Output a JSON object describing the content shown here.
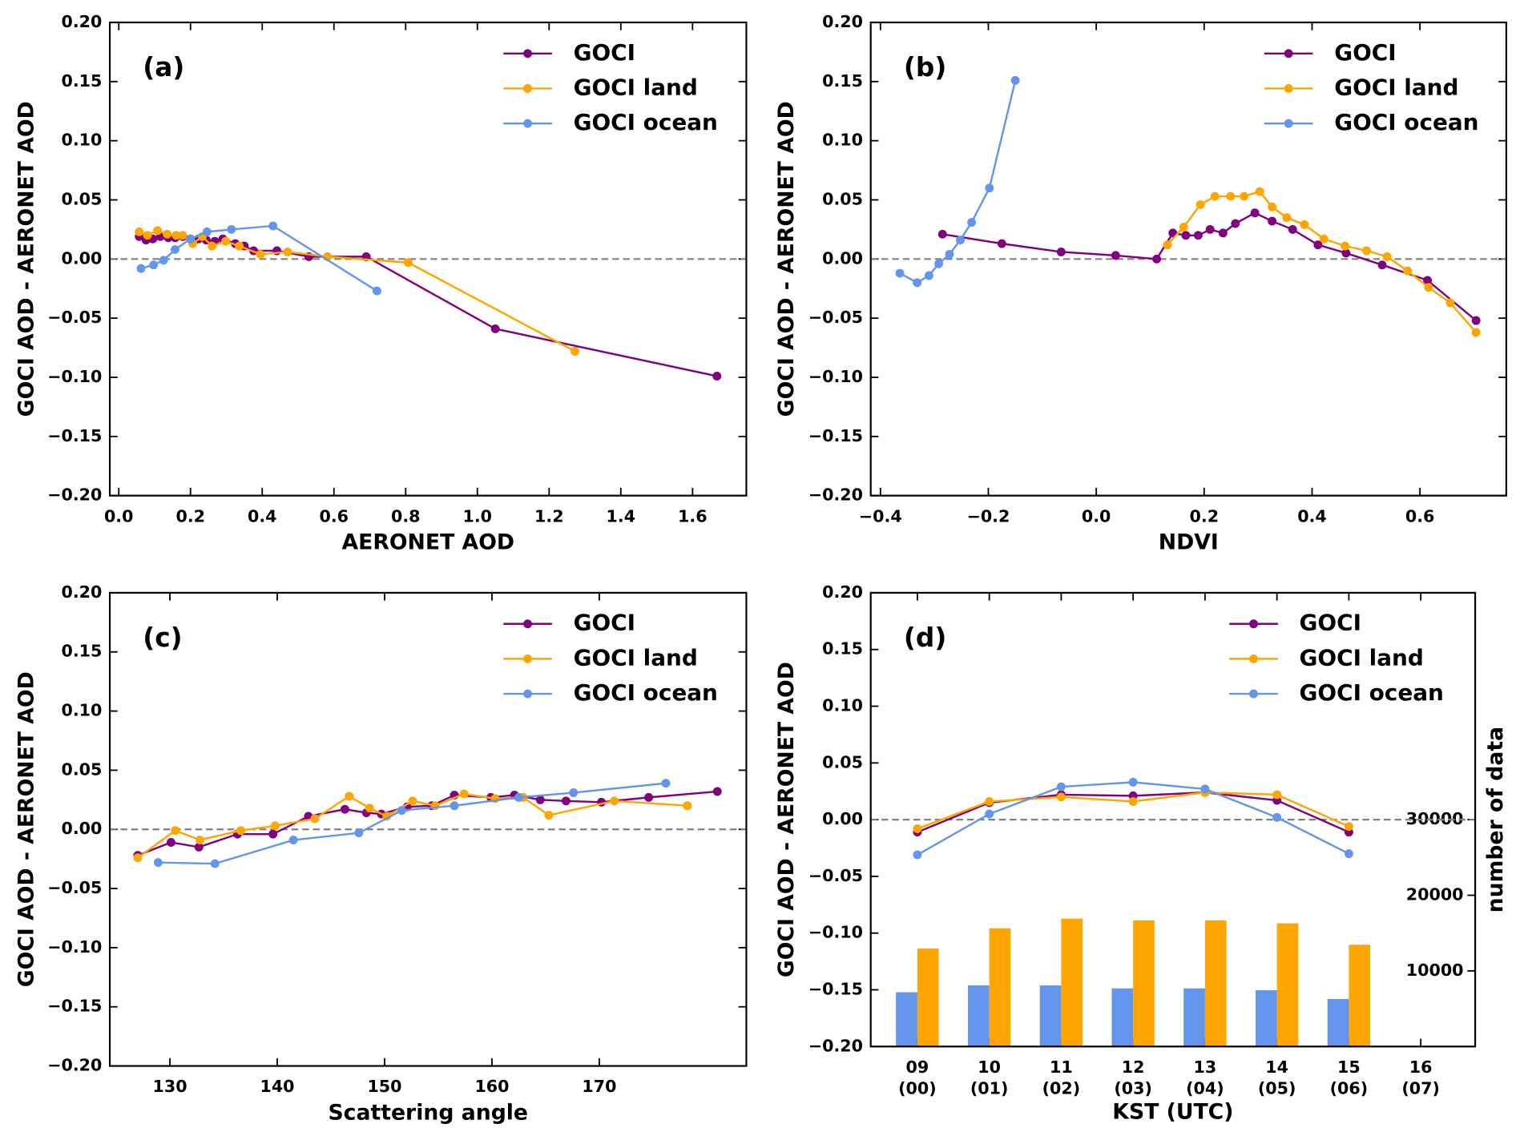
{
  "chart_data": [
    {
      "type": "line",
      "panel_label": "(a)",
      "x_label": "AERONET AOD",
      "y_label": "GOCI AOD - AERONET AOD",
      "xlim": [
        -0.025,
        1.75
      ],
      "ylim": [
        -0.2,
        0.2
      ],
      "xticks": [
        {
          "value": 0,
          "label": "0.0"
        },
        0.2,
        0.4,
        0.6,
        0.8,
        {
          "value": 1,
          "label": "1.0"
        },
        1.2,
        1.4,
        1.6
      ],
      "yticks": [
        {
          "value": -0.2,
          "label": "−0.20"
        },
        {
          "value": -0.15,
          "label": "−0.15"
        },
        {
          "value": -0.1,
          "label": "−0.10"
        },
        {
          "value": -0.05,
          "label": "−0.05"
        },
        {
          "value": 0,
          "label": "0.00"
        },
        {
          "value": 0.05,
          "label": "0.05"
        },
        {
          "value": 0.1,
          "label": "0.10"
        },
        {
          "value": 0.15,
          "label": "0.15"
        },
        {
          "value": 0.2,
          "label": "0.20"
        }
      ],
      "reference_line": 0,
      "legend": "upper right",
      "series": [
        {
          "name": "GOCI",
          "color": "#800080",
          "x": [
            0.057,
            0.076,
            0.095,
            0.116,
            0.138,
            0.157,
            0.179,
            0.2,
            0.222,
            0.244,
            0.268,
            0.29,
            0.325,
            0.35,
            0.376,
            0.441,
            0.53,
            0.69,
            1.05,
            1.668
          ],
          "values": [
            0.019,
            0.016,
            0.017,
            0.019,
            0.018,
            0.018,
            0.019,
            0.017,
            0.017,
            0.016,
            0.015,
            0.017,
            0.013,
            0.011,
            0.007,
            0.007,
            0.002,
            0.002,
            -0.059,
            -0.099
          ]
        },
        {
          "name": "GOCI land",
          "color": "#ffa500",
          "x": [
            0.057,
            0.08,
            0.108,
            0.135,
            0.16,
            0.178,
            0.206,
            0.233,
            0.26,
            0.298,
            0.336,
            0.395,
            0.471,
            0.582,
            0.807,
            1.272
          ],
          "values": [
            0.023,
            0.02,
            0.024,
            0.021,
            0.02,
            0.02,
            0.013,
            0.019,
            0.011,
            0.015,
            0.011,
            0.004,
            0.006,
            0.002,
            -0.003,
            -0.078
          ]
        },
        {
          "name": "GOCI ocean",
          "color": "#6495ed",
          "x": [
            0.062,
            0.097,
            0.125,
            0.157,
            0.2,
            0.246,
            0.314,
            0.43,
            0.72
          ],
          "values": [
            -0.008,
            -0.005,
            -0.001,
            0.008,
            0.017,
            0.023,
            0.025,
            0.028,
            -0.027
          ]
        }
      ]
    },
    {
      "type": "line",
      "panel_label": "(b)",
      "x_label": "NDVI",
      "y_label": "GOCI AOD - AERONET AOD",
      "xlim": [
        -0.418,
        0.76
      ],
      "ylim": [
        -0.2,
        0.2
      ],
      "xticks": [
        {
          "value": -0.4,
          "label": "−0.4"
        },
        {
          "value": -0.2,
          "label": "−0.2"
        },
        {
          "value": 0,
          "label": "0.0"
        },
        0.2,
        0.4,
        0.6
      ],
      "yticks": [
        {
          "value": -0.2,
          "label": "−0.20"
        },
        {
          "value": -0.15,
          "label": "−0.15"
        },
        {
          "value": -0.1,
          "label": "−0.10"
        },
        {
          "value": -0.05,
          "label": "−0.05"
        },
        {
          "value": 0,
          "label": "0.00"
        },
        {
          "value": 0.05,
          "label": "0.05"
        },
        {
          "value": 0.1,
          "label": "0.10"
        },
        {
          "value": 0.15,
          "label": "0.15"
        },
        {
          "value": 0.2,
          "label": "0.20"
        }
      ],
      "reference_line": 0,
      "legend": "upper right",
      "series": [
        {
          "name": "GOCI",
          "color": "#800080",
          "x": [
            -0.285,
            -0.175,
            -0.065,
            0.036,
            0.112,
            0.142,
            0.166,
            0.189,
            0.211,
            0.235,
            0.258,
            0.294,
            0.326,
            0.364,
            0.411,
            0.463,
            0.53,
            0.614,
            0.704
          ],
          "values": [
            0.021,
            0.013,
            0.006,
            0.003,
            0.0,
            0.022,
            0.02,
            0.02,
            0.025,
            0.022,
            0.03,
            0.039,
            0.032,
            0.025,
            0.012,
            0.005,
            -0.005,
            -0.018,
            -0.052
          ]
        },
        {
          "name": "GOCI land",
          "color": "#ffa500",
          "x": [
            0.132,
            0.162,
            0.193,
            0.22,
            0.249,
            0.274,
            0.303,
            0.326,
            0.353,
            0.386,
            0.422,
            0.461,
            0.501,
            0.539,
            0.577,
            0.616,
            0.656,
            0.704
          ],
          "values": [
            0.012,
            0.027,
            0.046,
            0.053,
            0.053,
            0.053,
            0.057,
            0.044,
            0.035,
            0.029,
            0.017,
            0.011,
            0.007,
            0.002,
            -0.01,
            -0.024,
            -0.037,
            -0.062
          ]
        },
        {
          "name": "GOCI ocean",
          "color": "#6495ed",
          "x": [
            -0.364,
            -0.332,
            -0.31,
            -0.292,
            -0.272,
            -0.252,
            -0.231,
            -0.198,
            -0.15
          ],
          "values": [
            -0.012,
            -0.02,
            -0.014,
            -0.004,
            0.004,
            0.016,
            0.031,
            0.06,
            0.151
          ]
        }
      ]
    },
    {
      "type": "line",
      "panel_label": "(c)",
      "x_label": "Scattering angle",
      "y_label": "GOCI AOD - AERONET AOD",
      "xlim": [
        124.4,
        183.7
      ],
      "ylim": [
        -0.2,
        0.2
      ],
      "xticks": [
        130,
        140,
        150,
        160,
        170
      ],
      "yticks": [
        {
          "value": -0.2,
          "label": "−0.20"
        },
        {
          "value": -0.15,
          "label": "−0.15"
        },
        {
          "value": -0.1,
          "label": "−0.10"
        },
        {
          "value": -0.05,
          "label": "−0.05"
        },
        {
          "value": 0,
          "label": "0.00"
        },
        {
          "value": 0.05,
          "label": "0.05"
        },
        {
          "value": 0.1,
          "label": "0.10"
        },
        {
          "value": 0.15,
          "label": "0.15"
        },
        {
          "value": 0.2,
          "label": "0.20"
        }
      ],
      "reference_line": 0,
      "legend": "upper right",
      "series": [
        {
          "name": "GOCI",
          "color": "#800080",
          "x": [
            127.0,
            130.1,
            132.7,
            136.3,
            139.6,
            142.9,
            146.3,
            148.3,
            149.7,
            152.1,
            154.4,
            156.5,
            159.9,
            162.1,
            164.5,
            166.9,
            170.2,
            174.6,
            181.0
          ],
          "values": [
            -0.022,
            -0.011,
            -0.015,
            -0.004,
            -0.004,
            0.011,
            0.017,
            0.014,
            0.013,
            0.019,
            0.02,
            0.029,
            0.027,
            0.029,
            0.025,
            0.024,
            0.023,
            0.027,
            0.032
          ]
        },
        {
          "name": "GOCI land",
          "color": "#ffa500",
          "x": [
            127.0,
            130.5,
            132.8,
            136.6,
            139.8,
            143.5,
            146.7,
            148.6,
            150.2,
            152.6,
            154.7,
            157.4,
            160.3,
            162.9,
            165.3,
            171.4,
            178.2
          ],
          "values": [
            -0.024,
            -0.001,
            -0.009,
            -0.001,
            0.003,
            0.009,
            0.028,
            0.018,
            0.011,
            0.024,
            0.02,
            0.03,
            0.026,
            0.027,
            0.012,
            0.024,
            0.02
          ]
        },
        {
          "name": "GOCI ocean",
          "color": "#6495ed",
          "x": [
            128.9,
            134.2,
            141.5,
            147.6,
            151.6,
            156.5,
            162.5,
            167.6,
            176.2
          ],
          "values": [
            -0.028,
            -0.029,
            -0.009,
            -0.003,
            0.016,
            0.02,
            0.027,
            0.031,
            0.039
          ]
        }
      ]
    },
    {
      "type": "bar_line",
      "panel_label": "(d)",
      "x_label": "KST (UTC)",
      "y_label": "GOCI AOD - AERONET AOD",
      "y2_label": "number of data",
      "categories": [
        "09",
        "10",
        "11",
        "12",
        "13",
        "14",
        "15",
        "16"
      ],
      "sublabels": [
        "(00)",
        "(01)",
        "(02)",
        "(03)",
        "(04)",
        "(05)",
        "(06)",
        "(07)"
      ],
      "ylim": [
        -0.2,
        0.2
      ],
      "yticks": [
        {
          "value": -0.2,
          "label": "−0.20"
        },
        {
          "value": -0.15,
          "label": "−0.15"
        },
        {
          "value": -0.1,
          "label": "−0.10"
        },
        {
          "value": -0.05,
          "label": "−0.05"
        },
        {
          "value": 0,
          "label": "0.00"
        },
        {
          "value": 0.05,
          "label": "0.05"
        },
        {
          "value": 0.1,
          "label": "0.10"
        },
        {
          "value": 0.15,
          "label": "0.15"
        },
        {
          "value": 0.2,
          "label": "0.20"
        }
      ],
      "y2lim": [
        0,
        60000
      ],
      "y2ticks": [
        10000,
        20000,
        30000
      ],
      "reference_line": 0,
      "legend": "upper right",
      "series": [
        {
          "name": "GOCI",
          "color": "#800080",
          "values": [
            -0.011,
            0.015,
            0.022,
            0.021,
            0.024,
            0.017,
            -0.011,
            null
          ]
        },
        {
          "name": "GOCI land",
          "color": "#ffa500",
          "values": [
            -0.008,
            0.016,
            0.02,
            0.016,
            0.024,
            0.022,
            -0.006,
            null
          ]
        },
        {
          "name": "GOCI ocean",
          "color": "#6495ed",
          "values": [
            -0.031,
            0.005,
            0.029,
            0.033,
            0.027,
            0.002,
            -0.03,
            null
          ]
        }
      ],
      "bar_series": [
        {
          "color": "#6495ed",
          "axis": "y2",
          "values": [
            7180,
            8080,
            8080,
            7690,
            7690,
            7440,
            6280,
            null
          ]
        },
        {
          "color": "#ffa500",
          "axis": "y2",
          "values": [
            12950,
            15640,
            16920,
            16670,
            16670,
            16280,
            13460,
            null
          ]
        }
      ]
    }
  ]
}
